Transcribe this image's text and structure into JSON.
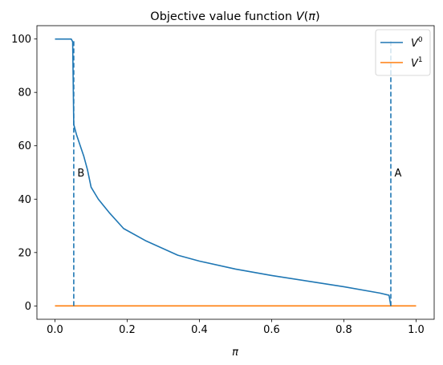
{
  "chart_data": {
    "type": "line",
    "title": "Objective value function V(π)",
    "xlabel": "π",
    "ylabel": "",
    "xlim": [
      -0.05,
      1.05
    ],
    "ylim": [
      -5,
      105
    ],
    "xticks": [
      0.0,
      0.2,
      0.4,
      0.6,
      0.8,
      1.0
    ],
    "xtick_labels": [
      "0.0",
      "0.2",
      "0.4",
      "0.6",
      "0.8",
      "1.0"
    ],
    "yticks": [
      0,
      20,
      40,
      60,
      80,
      100
    ],
    "ytick_labels": [
      "0",
      "20",
      "40",
      "60",
      "80",
      "100"
    ],
    "grid": false,
    "legend_position": "top-right",
    "series": [
      {
        "name": "V⁰",
        "label_base": "V",
        "label_sup": "0",
        "color": "#1f77b4",
        "x": [
          0.0,
          0.045,
          0.049,
          0.052,
          0.06,
          0.07,
          0.08,
          0.09,
          0.1,
          0.12,
          0.15,
          0.19,
          0.25,
          0.34,
          0.4,
          0.5,
          0.6,
          0.7,
          0.8,
          0.9,
          0.925,
          0.93
        ],
        "y": [
          100,
          100,
          99,
          68,
          64,
          60,
          56,
          51,
          44.5,
          40,
          35,
          29,
          24.5,
          19,
          16.8,
          13.8,
          11.4,
          9.3,
          7.2,
          4.8,
          4,
          0
        ]
      },
      {
        "name": "V¹",
        "label_base": "V",
        "label_sup": "1",
        "color": "#ff7f0e",
        "x": [
          0.0,
          1.0
        ],
        "y": [
          0,
          0
        ]
      }
    ],
    "vlines": [
      {
        "x": 0.052,
        "ymin": 0,
        "ymax": 100,
        "color": "#1f77b4",
        "style": "dashed"
      },
      {
        "x": 0.93,
        "ymin": 0,
        "ymax": 100,
        "color": "#1f77b4",
        "style": "dashed"
      }
    ],
    "annotations": [
      {
        "text": "B",
        "x": 0.062,
        "y": 50
      },
      {
        "text": "A",
        "x": 0.94,
        "y": 50
      }
    ]
  }
}
